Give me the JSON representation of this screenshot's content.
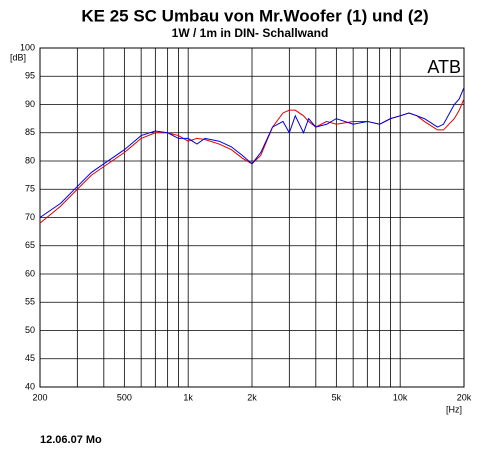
{
  "chart_data": {
    "type": "line",
    "title": "KE 25 SC Umbau von Mr.Woofer   (1) und (2)",
    "subtitle": "1W / 1m in DIN- Schallwand",
    "y_label": "[dB]",
    "x_label": "[Hz]",
    "annotation": "ATB",
    "footer": "12.06.07 Mo",
    "xlog": true,
    "grid": true,
    "xlim": [
      200,
      20000
    ],
    "ylim": [
      40,
      100
    ],
    "xticks": [
      200,
      500,
      {
        "value": 1000,
        "label": "1k"
      },
      {
        "value": 2000,
        "label": "2k"
      },
      {
        "value": 5000,
        "label": "5k"
      },
      {
        "value": 10000,
        "label": "10k"
      },
      {
        "value": 20000,
        "label": "20k"
      }
    ],
    "xgrid": [
      300,
      400,
      600,
      700,
      800,
      900,
      3000,
      4000,
      6000,
      7000,
      8000,
      9000
    ],
    "yticks": [
      40,
      45,
      50,
      55,
      60,
      65,
      70,
      75,
      80,
      85,
      90,
      95,
      100
    ],
    "x": [
      200,
      250,
      300,
      350,
      400,
      500,
      600,
      700,
      800,
      900,
      1000,
      1100,
      1200,
      1400,
      1600,
      1800,
      2000,
      2200,
      2500,
      2800,
      3000,
      3200,
      3500,
      3700,
      4000,
      4500,
      5000,
      6000,
      7000,
      8000,
      9000,
      10000,
      11000,
      12000,
      13000,
      15000,
      16000,
      18000,
      19000,
      20000
    ],
    "series": [
      {
        "color": "#e00000",
        "values": [
          69,
          72,
          75,
          77.5,
          79,
          81.5,
          84,
          85,
          85,
          84.5,
          83.5,
          84,
          83.8,
          83,
          82,
          80.5,
          79.5,
          81,
          86,
          88.5,
          89,
          89,
          88,
          87,
          86,
          87,
          86.5,
          87,
          87,
          86.5,
          87.5,
          88,
          88.5,
          88,
          87,
          85.5,
          85.5,
          87.5,
          89,
          91
        ]
      },
      {
        "color": "#0000e0",
        "values": [
          70,
          72.5,
          75.5,
          78,
          79.5,
          82,
          84.5,
          85.3,
          85,
          84,
          84,
          83,
          84,
          83.5,
          82.5,
          81,
          79.5,
          81.5,
          86,
          87,
          85,
          88,
          85,
          87.5,
          86,
          86.5,
          87.5,
          86.5,
          87,
          86.5,
          87.5,
          88,
          88.5,
          88,
          87.5,
          86,
          86.5,
          90,
          91,
          93
        ]
      }
    ]
  }
}
